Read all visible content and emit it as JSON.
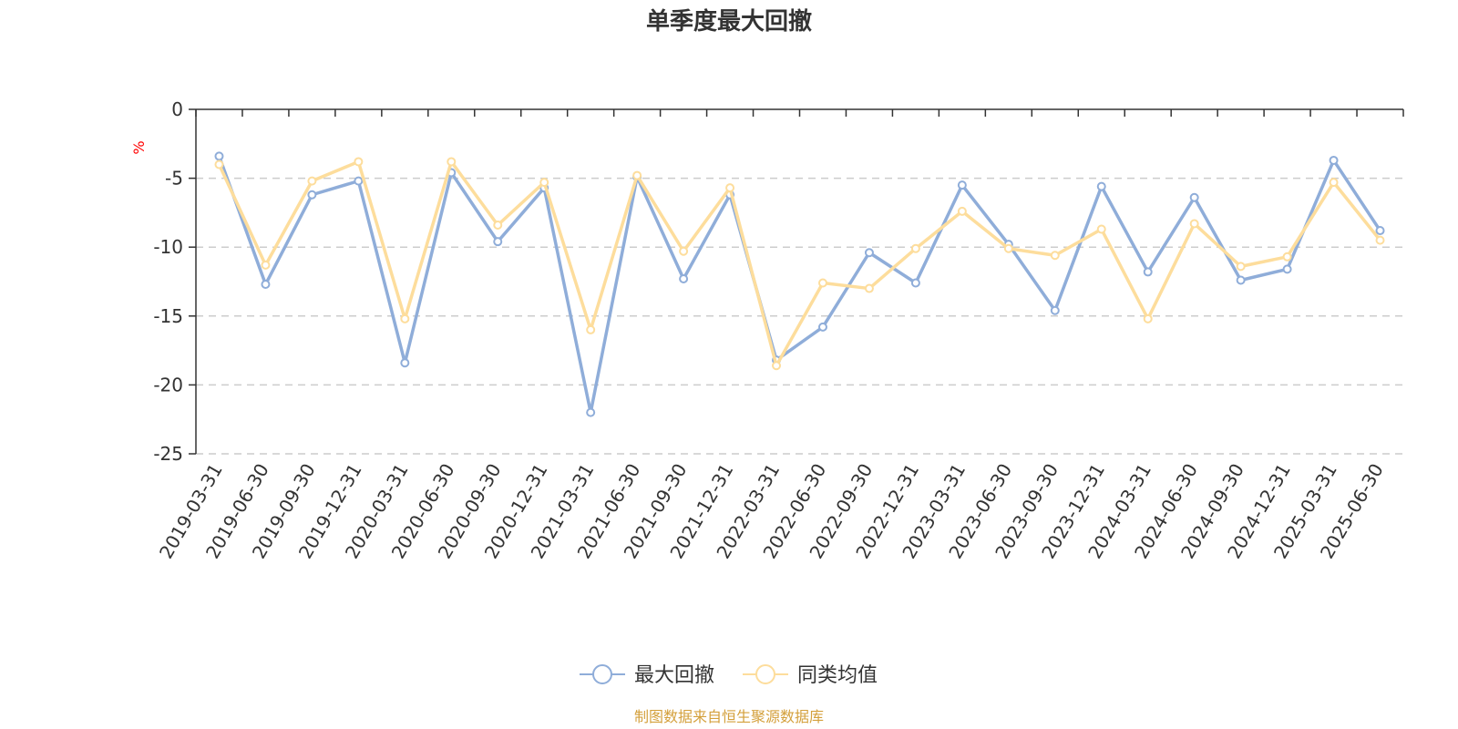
{
  "chart_data": {
    "type": "line",
    "title": "单季度最大回撤",
    "ylabel": "%",
    "ylim": [
      -25,
      0
    ],
    "yticks": [
      0,
      -5,
      -10,
      -15,
      -20,
      -25
    ],
    "grid": true,
    "legend_position": "bottom",
    "x": [
      "2019-03-31",
      "2019-06-30",
      "2019-09-30",
      "2019-12-31",
      "2020-03-31",
      "2020-06-30",
      "2020-09-30",
      "2020-12-31",
      "2021-03-31",
      "2021-06-30",
      "2021-09-30",
      "2021-12-31",
      "2022-03-31",
      "2022-06-30",
      "2022-09-30",
      "2022-12-31",
      "2023-03-31",
      "2023-06-30",
      "2023-09-30",
      "2023-12-31",
      "2024-03-31",
      "2024-06-30",
      "2024-09-30",
      "2024-12-31",
      "2025-03-31",
      "2025-06-30"
    ],
    "series": [
      {
        "name": "最大回撤",
        "color": "#8fadd9",
        "values": [
          -3.4,
          -12.7,
          -6.2,
          -5.2,
          -18.4,
          -4.6,
          -9.6,
          -5.7,
          -22.0,
          -4.9,
          -12.3,
          -6.2,
          -18.2,
          -15.8,
          -10.4,
          -12.6,
          -5.5,
          -9.8,
          -14.6,
          -5.6,
          -11.8,
          -6.4,
          -12.4,
          -11.6,
          -3.7,
          -8.8
        ]
      },
      {
        "name": "同类均值",
        "color": "#fddd9c",
        "values": [
          -4.0,
          -11.3,
          -5.2,
          -3.8,
          -15.2,
          -3.8,
          -8.4,
          -5.3,
          -16.0,
          -4.8,
          -10.3,
          -5.7,
          -18.6,
          -12.6,
          -13.0,
          -10.1,
          -7.4,
          -10.1,
          -10.6,
          -8.7,
          -15.2,
          -8.3,
          -11.4,
          -10.7,
          -5.3,
          -9.5
        ]
      }
    ]
  },
  "colors": {
    "axis": "#333333",
    "grid": "#cccccc",
    "unit": "#ff0000",
    "source": "#d4a03c"
  },
  "source_note": "制图数据来自恒生聚源数据库"
}
